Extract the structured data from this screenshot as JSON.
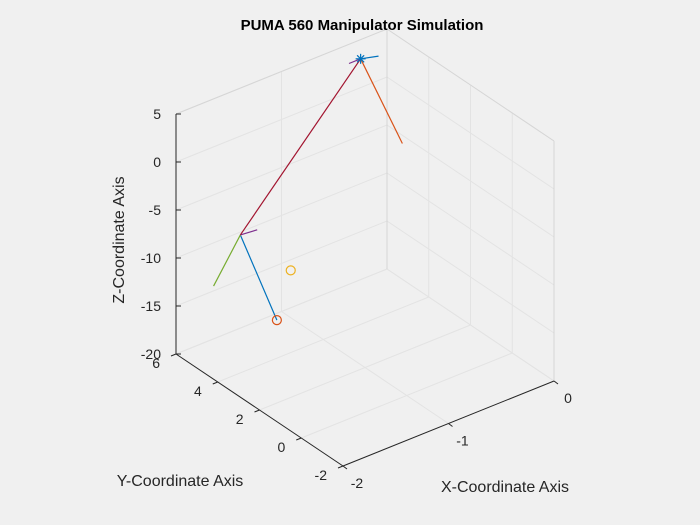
{
  "chart_data": {
    "type": "line3d",
    "title": "PUMA 560 Manipulator Simulation",
    "xlabel": "X-Coordinate Axis",
    "ylabel": "Y-Coordinate Axis",
    "zlabel": "Z-Coordinate Axis",
    "xlim": [
      -2,
      0
    ],
    "ylim": [
      -2,
      6
    ],
    "zlim": [
      -20,
      5
    ],
    "xticks": [
      "-2",
      "-1",
      "0"
    ],
    "yticks": [
      "-2",
      "0",
      "2",
      "4",
      "6"
    ],
    "zticks": [
      "-20",
      "-15",
      "-10",
      "-5",
      "0",
      "5"
    ],
    "grid": true,
    "view": "3d",
    "series": [
      {
        "color": "#0072bd",
        "marker": "none",
        "points": [
          [
            -1.4,
            4.2,
            -16.5
          ],
          [
            -1.39,
            6.0,
            -10.3
          ]
        ]
      },
      {
        "color": "#d95319",
        "marker": "none",
        "points": [
          [
            -0.25,
            4.0,
            -2.9
          ],
          [
            -0.25,
            6.0,
            3.0
          ]
        ]
      },
      {
        "color": "#7e2f8e",
        "marker": "none",
        "points": [
          [
            -1.39,
            6.0,
            -10.3
          ],
          [
            -1.27,
            5.8,
            -10.0
          ]
        ]
      },
      {
        "color": "#7e2f8e",
        "marker": "none",
        "points": [
          [
            -0.25,
            6.0,
            3.0
          ],
          [
            -0.36,
            6.0,
            3.0
          ]
        ]
      },
      {
        "color": "#77ac30",
        "marker": "none",
        "points": [
          [
            -1.39,
            6.0,
            -10.3
          ],
          [
            -2.0,
            4.2,
            -10.3
          ]
        ]
      },
      {
        "color": "#a2142f",
        "marker": "none",
        "points": [
          [
            -1.39,
            6.0,
            -10.3
          ],
          [
            -0.25,
            6.0,
            3.0
          ]
        ]
      },
      {
        "color": "#0072bd",
        "marker": "none",
        "points": [
          [
            -0.25,
            6.0,
            3.0
          ],
          [
            -0.12,
            5.8,
            3.0
          ]
        ]
      },
      {
        "color": "#d95319",
        "marker": "o",
        "points": [
          [
            -1.4,
            4.2,
            -16.5
          ]
        ]
      },
      {
        "color": "#edb120",
        "marker": "o",
        "points": [
          [
            -1.15,
            4.8,
            -13.3
          ]
        ]
      },
      {
        "color": "#0072bd",
        "marker": "*",
        "points": [
          [
            -0.25,
            6.0,
            3.0
          ]
        ]
      }
    ]
  }
}
